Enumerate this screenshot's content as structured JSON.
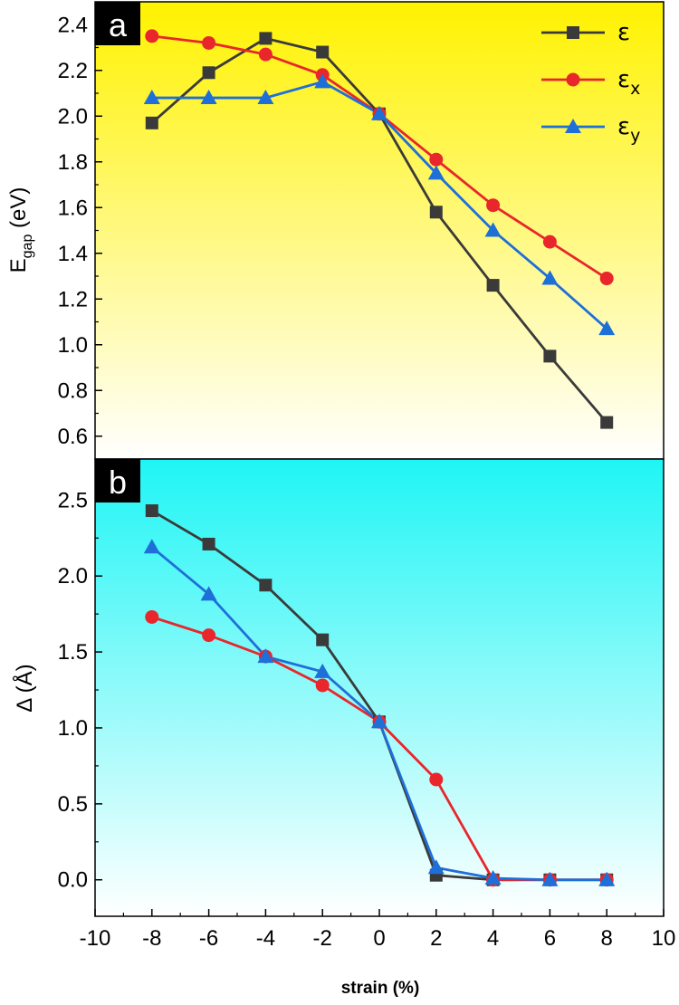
{
  "colors": {
    "eps": "#3a3a3a",
    "eps_x": "#e8262b",
    "eps_y": "#1f6fd8",
    "panel_a_top": "#fff200",
    "panel_a_bottom": "#ffffff",
    "panel_b_top": "#1ff5f5",
    "panel_b_bottom": "#ffffff"
  },
  "chart_data": [
    {
      "type": "line",
      "panel_label": "a",
      "ylabel_main": "E",
      "ylabel_sub": "gap",
      "ylabel_unit": " (eV)",
      "ylim": [
        0.5,
        2.5
      ],
      "yticks": [
        0.6,
        0.8,
        1.0,
        1.2,
        1.4,
        1.6,
        1.8,
        2.0,
        2.2,
        2.4
      ],
      "ytick_labels": [
        "0.6",
        "0.8",
        "1.0",
        "1.2",
        "1.4",
        "1.6",
        "1.8",
        "2.0",
        "2.2",
        "2.4"
      ],
      "xlim": [
        -10,
        10
      ],
      "x": [
        -8,
        -6,
        -4,
        -2,
        0,
        2,
        4,
        6,
        8
      ],
      "legend_position": "top-right",
      "series": [
        {
          "name": "ε",
          "sub": "",
          "color_key": "eps",
          "marker": "square",
          "values": [
            1.97,
            2.19,
            2.34,
            2.28,
            2.01,
            1.58,
            1.26,
            0.95,
            0.66
          ]
        },
        {
          "name": "ε",
          "sub": "x",
          "color_key": "eps_x",
          "marker": "circle",
          "values": [
            2.35,
            2.32,
            2.27,
            2.18,
            2.01,
            1.81,
            1.61,
            1.45,
            1.29
          ]
        },
        {
          "name": "ε",
          "sub": "y",
          "color_key": "eps_y",
          "marker": "triangle",
          "values": [
            2.08,
            2.08,
            2.08,
            2.15,
            2.01,
            1.75,
            1.5,
            1.29,
            1.07
          ]
        }
      ]
    },
    {
      "type": "line",
      "panel_label": "b",
      "ylabel_main": "Δ (Å)",
      "ylim": [
        -0.24,
        2.77
      ],
      "yticks": [
        0.0,
        0.5,
        1.0,
        1.5,
        2.0,
        2.5
      ],
      "ytick_labels": [
        "0.0",
        "0.5",
        "1.0",
        "1.5",
        "2.0",
        "2.5"
      ],
      "xlim": [
        -10,
        10
      ],
      "x": [
        -8,
        -6,
        -4,
        -2,
        0,
        2,
        4,
        6,
        8
      ],
      "xticks": [
        -10,
        -8,
        -6,
        -4,
        -2,
        0,
        2,
        4,
        6,
        8,
        10
      ],
      "xtick_labels": [
        "-10",
        "-8",
        "-6",
        "-4",
        "-2",
        "0",
        "2",
        "4",
        "6",
        "8",
        "10"
      ],
      "xlabel": "strain (%)",
      "series": [
        {
          "name": "ε",
          "sub": "",
          "color_key": "eps",
          "marker": "square",
          "values": [
            2.43,
            2.21,
            1.94,
            1.58,
            1.04,
            0.03,
            0.0,
            0.0,
            0.0
          ]
        },
        {
          "name": "ε",
          "sub": "x",
          "color_key": "eps_x",
          "marker": "circle",
          "values": [
            1.73,
            1.61,
            1.47,
            1.28,
            1.04,
            0.66,
            0.0,
            0.0,
            0.0
          ]
        },
        {
          "name": "ε",
          "sub": "y",
          "color_key": "eps_y",
          "marker": "triangle",
          "values": [
            2.19,
            1.88,
            1.47,
            1.37,
            1.04,
            0.08,
            0.01,
            0.0,
            0.0
          ]
        }
      ]
    }
  ]
}
